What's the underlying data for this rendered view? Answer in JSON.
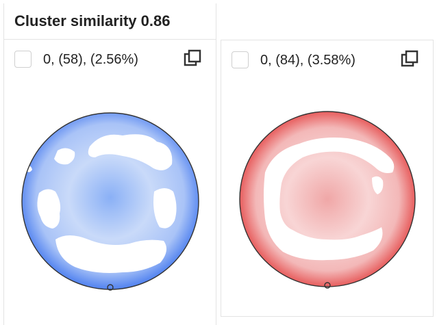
{
  "header": {
    "title": "Cluster similarity 0.86"
  },
  "cards": [
    {
      "label": "0, (58), (2.56%)",
      "color": "#3a6ef0",
      "icons": [
        "checkbox",
        "copy-icon"
      ]
    },
    {
      "label": "0, (84), (3.58%)",
      "color": "#e23a3a",
      "icons": [
        "checkbox",
        "copy-icon"
      ]
    }
  ]
}
